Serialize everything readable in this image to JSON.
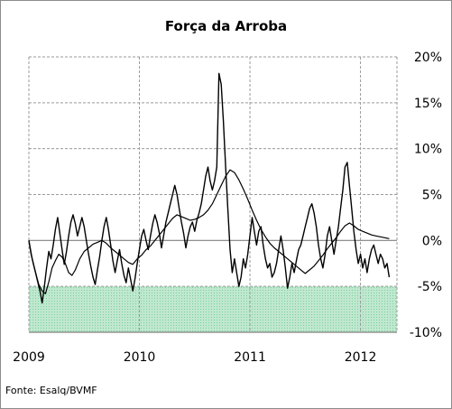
{
  "chart_data": {
    "type": "line",
    "title": "Força da Arroba",
    "ylim": [
      -10,
      20
    ],
    "y_ticks": [
      "20%",
      "15%",
      "10%",
      "5%",
      "0%",
      "-5%",
      "-10%"
    ],
    "y_tick_values": [
      20,
      15,
      10,
      5,
      0,
      -5,
      -10
    ],
    "x_ticks": [
      "2009",
      "2010",
      "2011",
      "2012"
    ],
    "x_tick_values": [
      2009.0,
      2010.0,
      2011.0,
      2012.0
    ],
    "xlim": [
      2009.0,
      2012.33
    ],
    "grid": true,
    "shaded_band": {
      "from": -10,
      "to": -5,
      "color": "#bfe8cf"
    },
    "series": [
      {
        "points": [
          [
            2009.0,
            0.0
          ],
          [
            2009.03,
            -2.0
          ],
          [
            2009.06,
            -3.5
          ],
          [
            2009.09,
            -4.8
          ],
          [
            2009.12,
            -5.5
          ],
          [
            2009.15,
            -5.8
          ],
          [
            2009.18,
            -4.5
          ],
          [
            2009.21,
            -3.0
          ],
          [
            2009.24,
            -2.2
          ],
          [
            2009.27,
            -1.5
          ],
          [
            2009.3,
            -1.8
          ],
          [
            2009.33,
            -2.5
          ],
          [
            2009.36,
            -3.5
          ],
          [
            2009.39,
            -3.8
          ],
          [
            2009.42,
            -3.2
          ],
          [
            2009.46,
            -2.0
          ],
          [
            2009.5,
            -1.2
          ],
          [
            2009.54,
            -0.8
          ],
          [
            2009.58,
            -0.4
          ],
          [
            2009.62,
            -0.2
          ],
          [
            2009.66,
            0.0
          ],
          [
            2009.7,
            -0.3
          ],
          [
            2009.74,
            -0.8
          ],
          [
            2009.78,
            -1.2
          ],
          [
            2009.82,
            -1.6
          ],
          [
            2009.86,
            -2.0
          ],
          [
            2009.9,
            -2.4
          ],
          [
            2009.94,
            -2.6
          ],
          [
            2009.98,
            -2.0
          ],
          [
            2010.02,
            -1.6
          ],
          [
            2010.06,
            -1.0
          ],
          [
            2010.1,
            -0.6
          ],
          [
            2010.14,
            0.0
          ],
          [
            2010.18,
            0.6
          ],
          [
            2010.22,
            1.2
          ],
          [
            2010.26,
            1.8
          ],
          [
            2010.3,
            2.4
          ],
          [
            2010.34,
            2.8
          ],
          [
            2010.38,
            2.6
          ],
          [
            2010.42,
            2.4
          ],
          [
            2010.46,
            2.2
          ],
          [
            2010.5,
            2.3
          ],
          [
            2010.54,
            2.5
          ],
          [
            2010.58,
            2.8
          ],
          [
            2010.62,
            3.3
          ],
          [
            2010.66,
            4.0
          ],
          [
            2010.7,
            5.0
          ],
          [
            2010.74,
            6.0
          ],
          [
            2010.78,
            7.0
          ],
          [
            2010.82,
            7.7
          ],
          [
            2010.86,
            7.4
          ],
          [
            2010.9,
            6.6
          ],
          [
            2010.94,
            5.6
          ],
          [
            2010.98,
            4.5
          ],
          [
            2011.02,
            3.3
          ],
          [
            2011.06,
            2.2
          ],
          [
            2011.1,
            1.2
          ],
          [
            2011.14,
            0.4
          ],
          [
            2011.18,
            -0.3
          ],
          [
            2011.22,
            -0.8
          ],
          [
            2011.26,
            -1.2
          ],
          [
            2011.3,
            -1.6
          ],
          [
            2011.34,
            -2.0
          ],
          [
            2011.38,
            -2.4
          ],
          [
            2011.42,
            -2.8
          ],
          [
            2011.46,
            -3.2
          ],
          [
            2011.5,
            -3.6
          ],
          [
            2011.54,
            -3.2
          ],
          [
            2011.58,
            -2.8
          ],
          [
            2011.62,
            -2.2
          ],
          [
            2011.66,
            -1.6
          ],
          [
            2011.7,
            -0.9
          ],
          [
            2011.74,
            -0.3
          ],
          [
            2011.78,
            0.3
          ],
          [
            2011.82,
            1.0
          ],
          [
            2011.86,
            1.6
          ],
          [
            2011.9,
            1.9
          ],
          [
            2011.94,
            1.6
          ],
          [
            2011.98,
            1.2
          ],
          [
            2012.02,
            1.0
          ],
          [
            2012.06,
            0.8
          ],
          [
            2012.1,
            0.6
          ],
          [
            2012.14,
            0.5
          ],
          [
            2012.18,
            0.4
          ],
          [
            2012.22,
            0.3
          ],
          [
            2012.26,
            0.2
          ]
        ]
      },
      {
        "points": [
          [
            2009.0,
            0.0
          ],
          [
            2009.02,
            -1.5
          ],
          [
            2009.04,
            -2.5
          ],
          [
            2009.06,
            -3.5
          ],
          [
            2009.08,
            -4.5
          ],
          [
            2009.1,
            -5.5
          ],
          [
            2009.12,
            -6.8
          ],
          [
            2009.14,
            -5.0
          ],
          [
            2009.16,
            -3.0
          ],
          [
            2009.18,
            -1.2
          ],
          [
            2009.2,
            -2.0
          ],
          [
            2009.22,
            -0.5
          ],
          [
            2009.24,
            1.2
          ],
          [
            2009.26,
            2.5
          ],
          [
            2009.28,
            0.8
          ],
          [
            2009.3,
            -1.0
          ],
          [
            2009.32,
            -2.6
          ],
          [
            2009.34,
            -1.2
          ],
          [
            2009.36,
            0.5
          ],
          [
            2009.38,
            2.0
          ],
          [
            2009.4,
            2.8
          ],
          [
            2009.42,
            1.8
          ],
          [
            2009.44,
            0.5
          ],
          [
            2009.46,
            1.5
          ],
          [
            2009.48,
            2.5
          ],
          [
            2009.5,
            1.5
          ],
          [
            2009.52,
            0.0
          ],
          [
            2009.54,
            -1.5
          ],
          [
            2009.56,
            -2.8
          ],
          [
            2009.58,
            -4.0
          ],
          [
            2009.6,
            -4.8
          ],
          [
            2009.62,
            -3.2
          ],
          [
            2009.64,
            -1.8
          ],
          [
            2009.66,
            0.0
          ],
          [
            2009.68,
            1.5
          ],
          [
            2009.7,
            2.5
          ],
          [
            2009.72,
            1.2
          ],
          [
            2009.74,
            -0.5
          ],
          [
            2009.76,
            -2.2
          ],
          [
            2009.78,
            -3.5
          ],
          [
            2009.8,
            -2.2
          ],
          [
            2009.82,
            -1.0
          ],
          [
            2009.84,
            -2.5
          ],
          [
            2009.86,
            -3.8
          ],
          [
            2009.88,
            -4.6
          ],
          [
            2009.9,
            -3.0
          ],
          [
            2009.92,
            -4.2
          ],
          [
            2009.94,
            -5.5
          ],
          [
            2009.96,
            -4.2
          ],
          [
            2009.98,
            -2.5
          ],
          [
            2010.0,
            -1.0
          ],
          [
            2010.02,
            0.5
          ],
          [
            2010.04,
            1.2
          ],
          [
            2010.06,
            0.0
          ],
          [
            2010.08,
            -1.0
          ],
          [
            2010.1,
            0.5
          ],
          [
            2010.12,
            1.8
          ],
          [
            2010.14,
            2.8
          ],
          [
            2010.16,
            2.0
          ],
          [
            2010.18,
            0.8
          ],
          [
            2010.2,
            -0.8
          ],
          [
            2010.22,
            0.6
          ],
          [
            2010.24,
            2.0
          ],
          [
            2010.26,
            3.0
          ],
          [
            2010.28,
            4.0
          ],
          [
            2010.3,
            5.0
          ],
          [
            2010.32,
            6.0
          ],
          [
            2010.34,
            5.0
          ],
          [
            2010.36,
            3.5
          ],
          [
            2010.38,
            2.0
          ],
          [
            2010.4,
            0.8
          ],
          [
            2010.42,
            -0.8
          ],
          [
            2010.44,
            0.5
          ],
          [
            2010.46,
            1.5
          ],
          [
            2010.48,
            2.0
          ],
          [
            2010.5,
            1.0
          ],
          [
            2010.52,
            2.2
          ],
          [
            2010.54,
            3.0
          ],
          [
            2010.56,
            4.0
          ],
          [
            2010.58,
            5.5
          ],
          [
            2010.6,
            7.0
          ],
          [
            2010.62,
            8.0
          ],
          [
            2010.64,
            6.5
          ],
          [
            2010.66,
            5.5
          ],
          [
            2010.68,
            6.5
          ],
          [
            2010.7,
            8.0
          ],
          [
            2010.72,
            18.2
          ],
          [
            2010.74,
            17.0
          ],
          [
            2010.76,
            13.0
          ],
          [
            2010.78,
            8.0
          ],
          [
            2010.8,
            3.5
          ],
          [
            2010.82,
            -1.0
          ],
          [
            2010.84,
            -3.5
          ],
          [
            2010.86,
            -2.0
          ],
          [
            2010.88,
            -3.5
          ],
          [
            2010.9,
            -5.0
          ],
          [
            2010.92,
            -4.0
          ],
          [
            2010.94,
            -2.0
          ],
          [
            2010.96,
            -3.0
          ],
          [
            2010.98,
            -1.5
          ],
          [
            2011.0,
            0.5
          ],
          [
            2011.02,
            2.5
          ],
          [
            2011.04,
            1.0
          ],
          [
            2011.06,
            -0.5
          ],
          [
            2011.08,
            1.0
          ],
          [
            2011.1,
            1.5
          ],
          [
            2011.12,
            -0.5
          ],
          [
            2011.14,
            -2.0
          ],
          [
            2011.16,
            -3.0
          ],
          [
            2011.18,
            -2.5
          ],
          [
            2011.2,
            -4.0
          ],
          [
            2011.22,
            -3.5
          ],
          [
            2011.24,
            -2.5
          ],
          [
            2011.26,
            -1.0
          ],
          [
            2011.28,
            0.5
          ],
          [
            2011.3,
            -1.0
          ],
          [
            2011.32,
            -3.0
          ],
          [
            2011.34,
            -5.2
          ],
          [
            2011.36,
            -4.0
          ],
          [
            2011.38,
            -2.5
          ],
          [
            2011.4,
            -3.5
          ],
          [
            2011.42,
            -2.2
          ],
          [
            2011.44,
            -1.0
          ],
          [
            2011.46,
            -0.5
          ],
          [
            2011.48,
            0.5
          ],
          [
            2011.5,
            1.5
          ],
          [
            2011.52,
            2.5
          ],
          [
            2011.54,
            3.5
          ],
          [
            2011.56,
            4.0
          ],
          [
            2011.58,
            3.0
          ],
          [
            2011.6,
            1.5
          ],
          [
            2011.62,
            -0.5
          ],
          [
            2011.64,
            -2.0
          ],
          [
            2011.66,
            -3.0
          ],
          [
            2011.68,
            -1.5
          ],
          [
            2011.7,
            0.5
          ],
          [
            2011.72,
            1.5
          ],
          [
            2011.74,
            0.0
          ],
          [
            2011.76,
            -1.5
          ],
          [
            2011.78,
            0.0
          ],
          [
            2011.8,
            1.5
          ],
          [
            2011.82,
            3.5
          ],
          [
            2011.84,
            5.5
          ],
          [
            2011.86,
            8.0
          ],
          [
            2011.88,
            8.5
          ],
          [
            2011.9,
            6.0
          ],
          [
            2011.92,
            3.5
          ],
          [
            2011.94,
            1.0
          ],
          [
            2011.96,
            -1.0
          ],
          [
            2011.98,
            -2.5
          ],
          [
            2012.0,
            -1.5
          ],
          [
            2012.02,
            -3.0
          ],
          [
            2012.04,
            -2.0
          ],
          [
            2012.06,
            -3.5
          ],
          [
            2012.08,
            -2.0
          ],
          [
            2012.1,
            -1.0
          ],
          [
            2012.12,
            -0.5
          ],
          [
            2012.14,
            -1.5
          ],
          [
            2012.16,
            -2.5
          ],
          [
            2012.18,
            -1.5
          ],
          [
            2012.2,
            -2.0
          ],
          [
            2012.22,
            -3.0
          ],
          [
            2012.24,
            -2.5
          ],
          [
            2012.26,
            -4.0
          ]
        ]
      }
    ]
  },
  "source_text": "Fonte: Esalq/BVMF"
}
